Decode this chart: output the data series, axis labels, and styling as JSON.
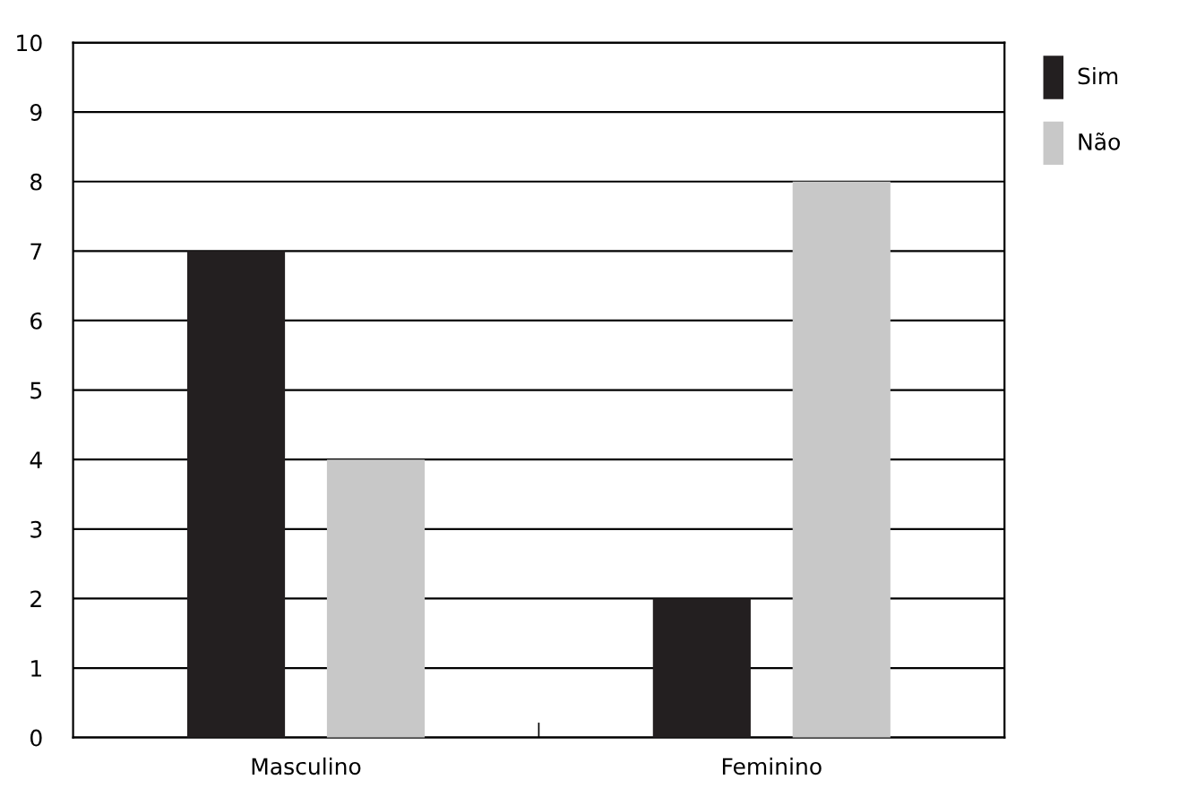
{
  "chart_data": {
    "type": "bar",
    "categories": [
      "Masculino",
      "Feminino"
    ],
    "series": [
      {
        "name": "Sim",
        "color": "#231f20",
        "values": [
          7,
          2
        ]
      },
      {
        "name": "Não",
        "color": "#c8c8c8",
        "values": [
          4,
          8
        ]
      }
    ],
    "ylim": [
      0,
      10
    ],
    "yticks": [
      0,
      1,
      2,
      3,
      4,
      5,
      6,
      7,
      8,
      9,
      10
    ],
    "grid": "y",
    "legend": "top right"
  }
}
